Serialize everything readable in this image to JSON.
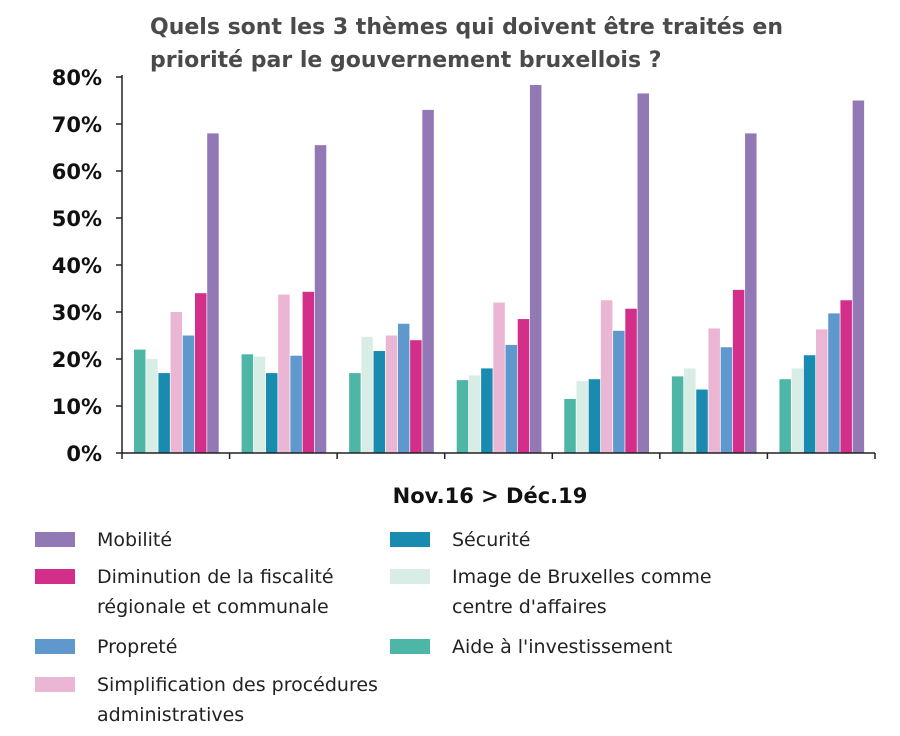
{
  "chart_data": {
    "type": "bar",
    "title_lines": [
      "Quels sont les 3 thèmes qui doivent être traités en",
      "priorité par le gouvernement bruxellois ?"
    ],
    "xlabel": "Nov.16 > Déc.19",
    "ylabel": "",
    "ylim": [
      0,
      80
    ],
    "yticks": [
      "0%",
      "10%",
      "20%",
      "30%",
      "40%",
      "50%",
      "60%",
      "70%",
      "80%"
    ],
    "categories": [
      "",
      "",
      "",
      "",
      "",
      "",
      ""
    ],
    "series": [
      {
        "name": "Aide à l'investissement",
        "color": "#4db6a6",
        "values": [
          22,
          21,
          17,
          15.5,
          11.5,
          16.3,
          15.7
        ]
      },
      {
        "name": "Image de Bruxelles comme centre d'affaires",
        "color": "#d8ede6",
        "values": [
          20,
          20.5,
          24.7,
          16.5,
          15.3,
          18,
          18
        ]
      },
      {
        "name": "Sécurité",
        "color": "#1a8bb0",
        "values": [
          17,
          17,
          21.7,
          18,
          15.7,
          13.5,
          20.8
        ]
      },
      {
        "name": "Simplification des procédures administratives",
        "color": "#ebb5d4",
        "values": [
          30,
          33.7,
          25,
          32,
          32.5,
          26.5,
          26.3
        ]
      },
      {
        "name": "Propreté",
        "color": "#5f98cd",
        "values": [
          25,
          20.7,
          27.5,
          23,
          26,
          22.5,
          29.7
        ]
      },
      {
        "name": "Diminution de la fiscalité régionale et communale",
        "color": "#d32e8a",
        "values": [
          34,
          34.3,
          24,
          28.5,
          30.7,
          34.7,
          32.5
        ]
      },
      {
        "name": "Mobilité",
        "color": "#9378b6",
        "values": [
          68,
          65.5,
          73,
          78.3,
          76.5,
          68,
          75
        ]
      }
    ],
    "grid": false,
    "legend_position": "bottom"
  },
  "legend": [
    {
      "name": "Mobilité",
      "lines": [
        "Mobilité"
      ],
      "color": "#9378b6"
    },
    {
      "name": "Diminution de la fiscalité régionale et communale",
      "lines": [
        "Diminution de la fiscalité",
        "régionale et communale"
      ],
      "color": "#d32e8a"
    },
    {
      "name": "Propreté",
      "lines": [
        "Propreté"
      ],
      "color": "#5f98cd"
    },
    {
      "name": "Simplification des procédures administratives",
      "lines": [
        "Simplification des procédures",
        "administratives"
      ],
      "color": "#ebb5d4"
    },
    {
      "name": "Sécurité",
      "lines": [
        "Sécurité"
      ],
      "color": "#1a8bb0"
    },
    {
      "name": "Image de Bruxelles comme centre d'affaires",
      "lines": [
        "Image de Bruxelles comme",
        "centre d'affaires"
      ],
      "color": "#d8ede6"
    },
    {
      "name": "Aide à l'investissement",
      "lines": [
        "Aide à l'investissement"
      ],
      "color": "#4db6a6"
    }
  ]
}
